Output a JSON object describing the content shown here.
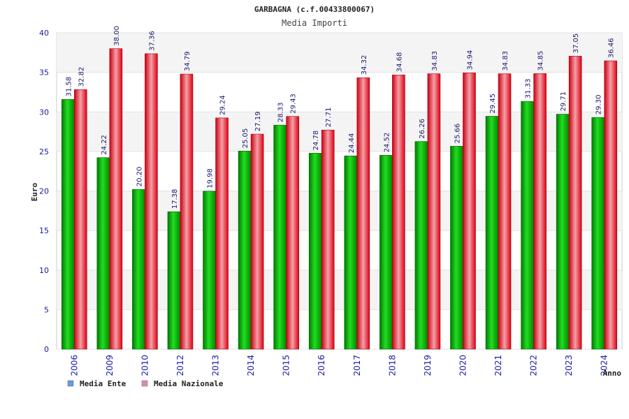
{
  "chart_data": {
    "type": "bar",
    "title": "GARBAGNA (c.f.00433800067)",
    "subtitle": "Media Importi",
    "xlabel": "Anno",
    "ylabel": "Euro",
    "ylim": [
      0,
      40
    ],
    "yticks": [
      0,
      5,
      10,
      15,
      20,
      25,
      30,
      35,
      40
    ],
    "grid": true,
    "legend_position": "bottom-left",
    "categories": [
      "2006",
      "2009",
      "2010",
      "2012",
      "2013",
      "2014",
      "2015",
      "2016",
      "2017",
      "2018",
      "2019",
      "2020",
      "2021",
      "2022",
      "2023",
      "2024"
    ],
    "series": [
      {
        "name": "Media Ente",
        "color": "#00aa00",
        "legend_color": "#6699ee",
        "values": [
          31.58,
          24.22,
          20.2,
          17.38,
          19.98,
          25.05,
          28.33,
          24.78,
          24.44,
          24.52,
          26.26,
          25.66,
          29.45,
          31.33,
          29.71,
          29.3
        ],
        "labels": [
          "31.58",
          "24.22",
          "20.20",
          "17.38",
          "19.98",
          "25.05",
          "28.33",
          "24.78",
          "24.44",
          "24.52",
          "26.26",
          "25.66",
          "29.45",
          "31.33",
          "29.71",
          "29.30"
        ]
      },
      {
        "name": "Media Nazionale",
        "color": "#ee1122",
        "legend_color": "#dd88bb",
        "values": [
          32.82,
          38.0,
          37.36,
          34.79,
          29.24,
          27.19,
          29.43,
          27.71,
          34.32,
          34.68,
          34.83,
          34.94,
          34.83,
          34.85,
          37.05,
          36.46
        ],
        "labels": [
          "32.82",
          "38.00",
          "37.36",
          "34.79",
          "29.24",
          "27.19",
          "29.43",
          "27.71",
          "34.32",
          "34.68",
          "34.83",
          "34.94",
          "34.83",
          "34.85",
          "37.05",
          "36.46"
        ]
      }
    ]
  }
}
